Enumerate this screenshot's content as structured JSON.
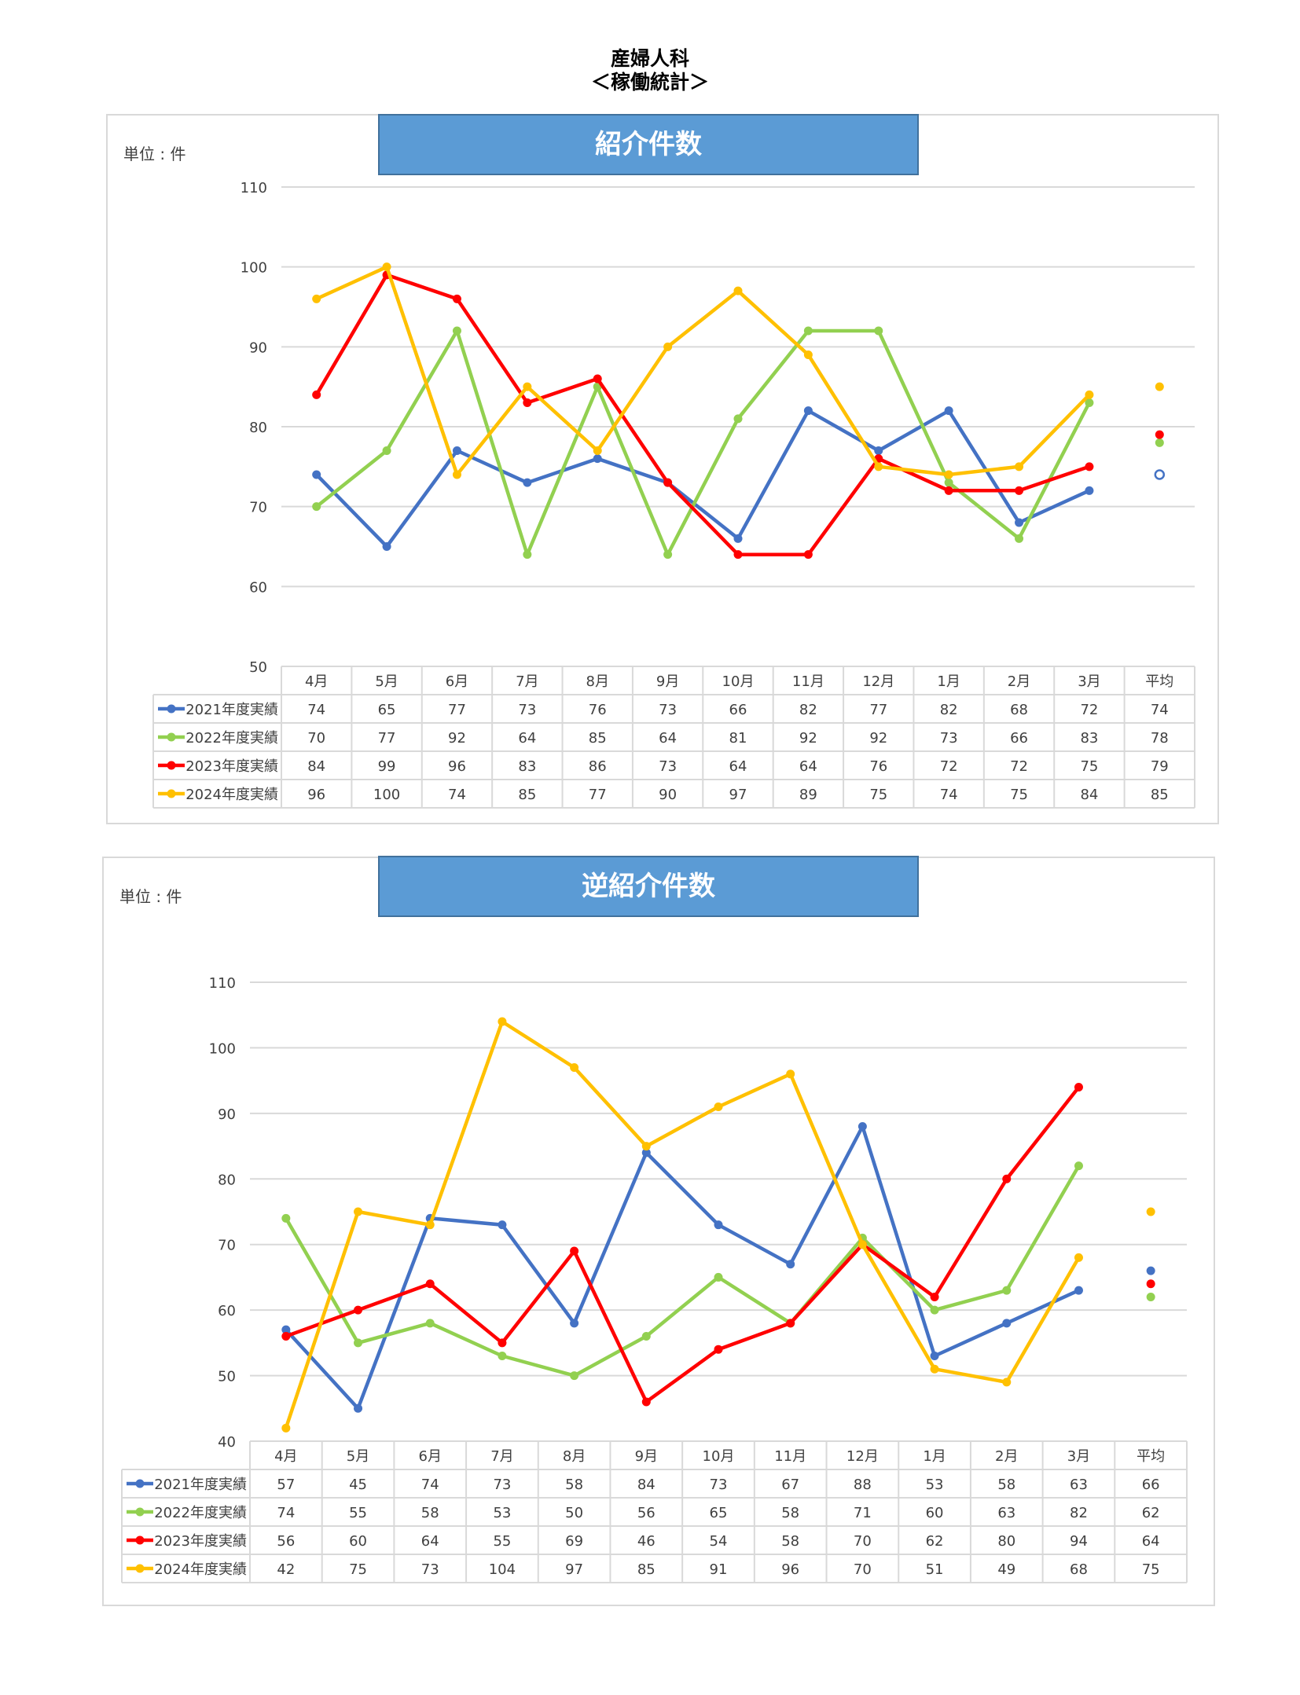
{
  "page": {
    "title_line1": "産婦人科",
    "title_line2": "＜稼働統計＞"
  },
  "colors": {
    "s2021": "#4472c4",
    "s2022": "#92d050",
    "s2023": "#ff0000",
    "s2024": "#ffc000"
  },
  "charts": {
    "referrals": {
      "title": "紹介件数",
      "unit": "単位 : 件"
    },
    "reverse_referrals": {
      "title": "逆紹介件数",
      "unit": "単位 : 件"
    }
  },
  "chart_data": [
    {
      "type": "line",
      "title": "紹介件数",
      "ylabel": "単位 : 件",
      "ylim": [
        50,
        110
      ],
      "yticks": [
        50,
        60,
        70,
        80,
        90,
        100,
        110
      ],
      "categories": [
        "4月",
        "5月",
        "6月",
        "7月",
        "8月",
        "9月",
        "10月",
        "11月",
        "12月",
        "1月",
        "2月",
        "3月"
      ],
      "avg_label": "平均",
      "series": [
        {
          "name": "2021年度実績",
          "color": "#4472c4",
          "values": [
            74,
            65,
            77,
            73,
            76,
            73,
            66,
            82,
            77,
            82,
            68,
            72
          ],
          "avg": 74
        },
        {
          "name": "2022年度実績",
          "color": "#92d050",
          "values": [
            70,
            77,
            92,
            64,
            85,
            64,
            81,
            92,
            92,
            73,
            66,
            83
          ],
          "avg": 78
        },
        {
          "name": "2023年度実績",
          "color": "#ff0000",
          "values": [
            84,
            99,
            96,
            83,
            86,
            73,
            64,
            64,
            76,
            72,
            72,
            75
          ],
          "avg": 79
        },
        {
          "name": "2024年度実績",
          "color": "#ffc000",
          "values": [
            96,
            100,
            74,
            85,
            77,
            90,
            97,
            89,
            75,
            74,
            75,
            84
          ],
          "avg": 85
        }
      ]
    },
    {
      "type": "line",
      "title": "逆紹介件数",
      "ylabel": "単位 : 件",
      "ylim": [
        40,
        110
      ],
      "yticks": [
        40,
        50,
        60,
        70,
        80,
        90,
        100,
        110
      ],
      "categories": [
        "4月",
        "5月",
        "6月",
        "7月",
        "8月",
        "9月",
        "10月",
        "11月",
        "12月",
        "1月",
        "2月",
        "3月"
      ],
      "avg_label": "平均",
      "series": [
        {
          "name": "2021年度実績",
          "color": "#4472c4",
          "values": [
            57,
            45,
            74,
            73,
            58,
            84,
            73,
            67,
            88,
            53,
            58,
            63
          ],
          "avg": 66
        },
        {
          "name": "2022年度実績",
          "color": "#92d050",
          "values": [
            74,
            55,
            58,
            53,
            50,
            56,
            65,
            58,
            71,
            60,
            63,
            82
          ],
          "avg": 62
        },
        {
          "name": "2023年度実績",
          "color": "#ff0000",
          "values": [
            56,
            60,
            64,
            55,
            69,
            46,
            54,
            58,
            70,
            62,
            80,
            94
          ],
          "avg": 64
        },
        {
          "name": "2024年度実績",
          "color": "#ffc000",
          "values": [
            42,
            75,
            73,
            104,
            97,
            85,
            91,
            96,
            70,
            51,
            49,
            68
          ],
          "avg": 75
        }
      ]
    }
  ]
}
